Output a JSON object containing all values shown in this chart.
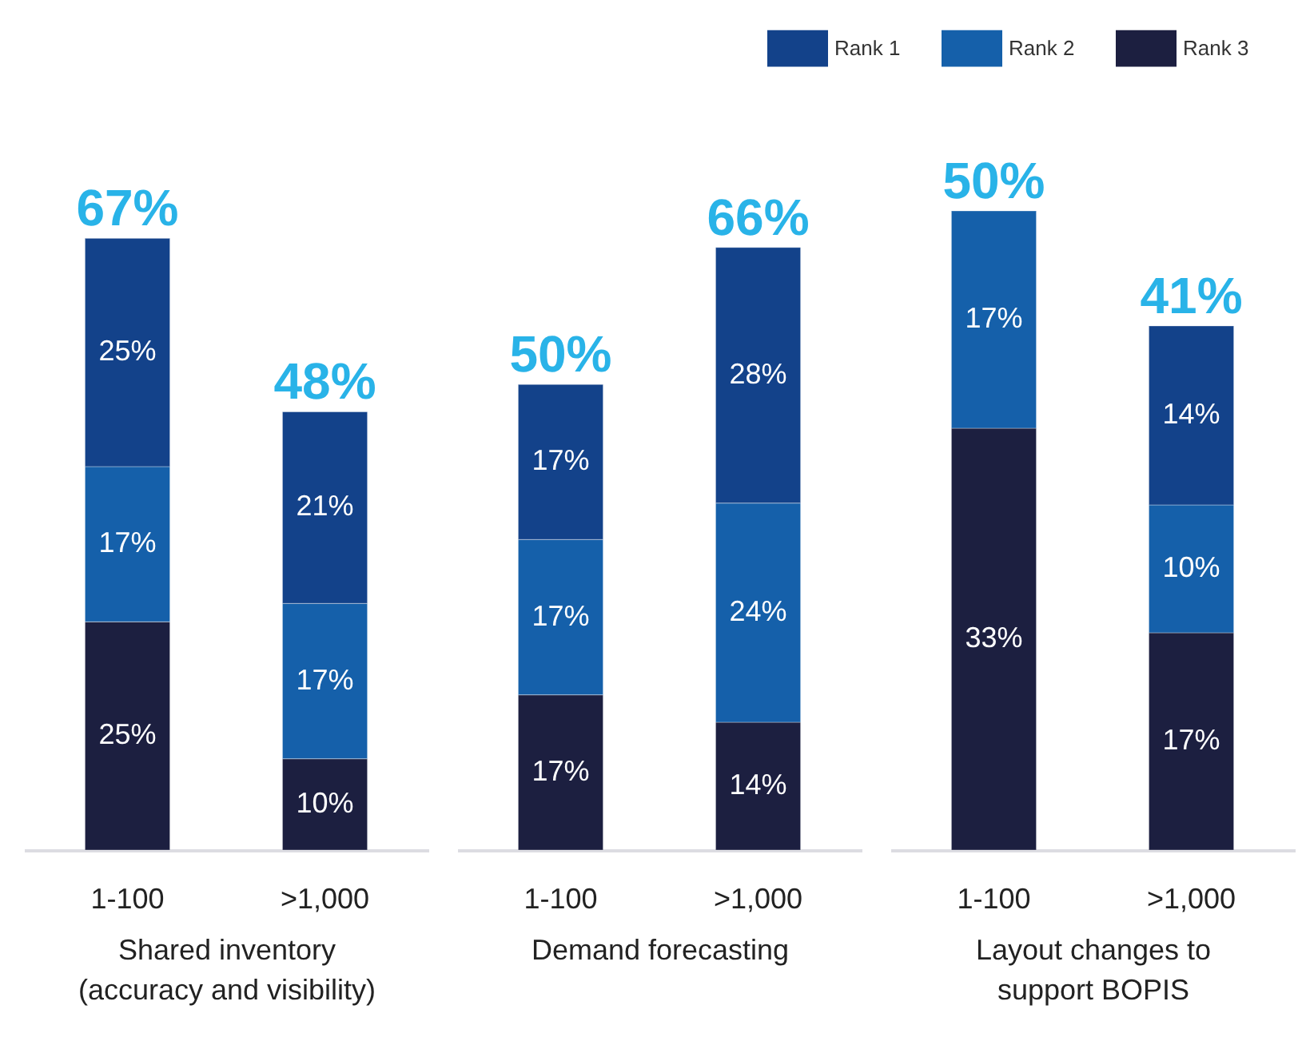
{
  "chart_data": [
    {
      "type": "bar",
      "stacked": true,
      "categories": [
        "1-100",
        ">1,000"
      ],
      "xlabel": "Shared inventory (accuracy and visibility)",
      "series": [
        {
          "color": "#1c1f40",
          "values": [
            25,
            10
          ],
          "value_labels": [
            "25%",
            "10%"
          ]
        },
        {
          "color": "#1560aa",
          "values": [
            17,
            17
          ],
          "value_labels": [
            "17%",
            "17%"
          ]
        },
        {
          "color": "#13428a",
          "values": [
            25,
            21
          ],
          "value_labels": [
            "25%",
            "21%"
          ]
        }
      ],
      "totals": [
        "67%",
        "48%"
      ]
    },
    {
      "type": "bar",
      "stacked": true,
      "categories": [
        "1-100",
        ">1,000"
      ],
      "xlabel": "Demand forecasting",
      "series": [
        {
          "color": "#1c1f40",
          "values": [
            17,
            14
          ],
          "value_labels": [
            "17%",
            "14%"
          ]
        },
        {
          "color": "#1560aa",
          "values": [
            17,
            24
          ],
          "value_labels": [
            "17%",
            "24%"
          ]
        },
        {
          "color": "#13428a",
          "values": [
            17,
            28
          ],
          "value_labels": [
            "17%",
            "28%"
          ]
        }
      ],
      "totals": [
        "50%",
        "66%"
      ]
    },
    {
      "type": "bar",
      "stacked": true,
      "categories": [
        "1-100",
        ">1,000"
      ],
      "xlabel": "Layout changes to support BOPIS",
      "series": [
        {
          "name": "Rank 3",
          "color": "#1c1f40",
          "values": [
            33,
            17
          ],
          "value_labels": [
            "33%",
            "17%"
          ]
        },
        {
          "name": "Rank 2",
          "color": "#1560aa",
          "values": [
            17,
            10
          ],
          "value_labels": [
            "17%",
            "10%"
          ]
        },
        {
          "name": "Rank 1",
          "color": "#13428a",
          "values": [
            null,
            14
          ],
          "value_labels": [
            null,
            "14%"
          ]
        }
      ],
      "totals": [
        "50%",
        "41%"
      ],
      "legend": "top"
    }
  ]
}
